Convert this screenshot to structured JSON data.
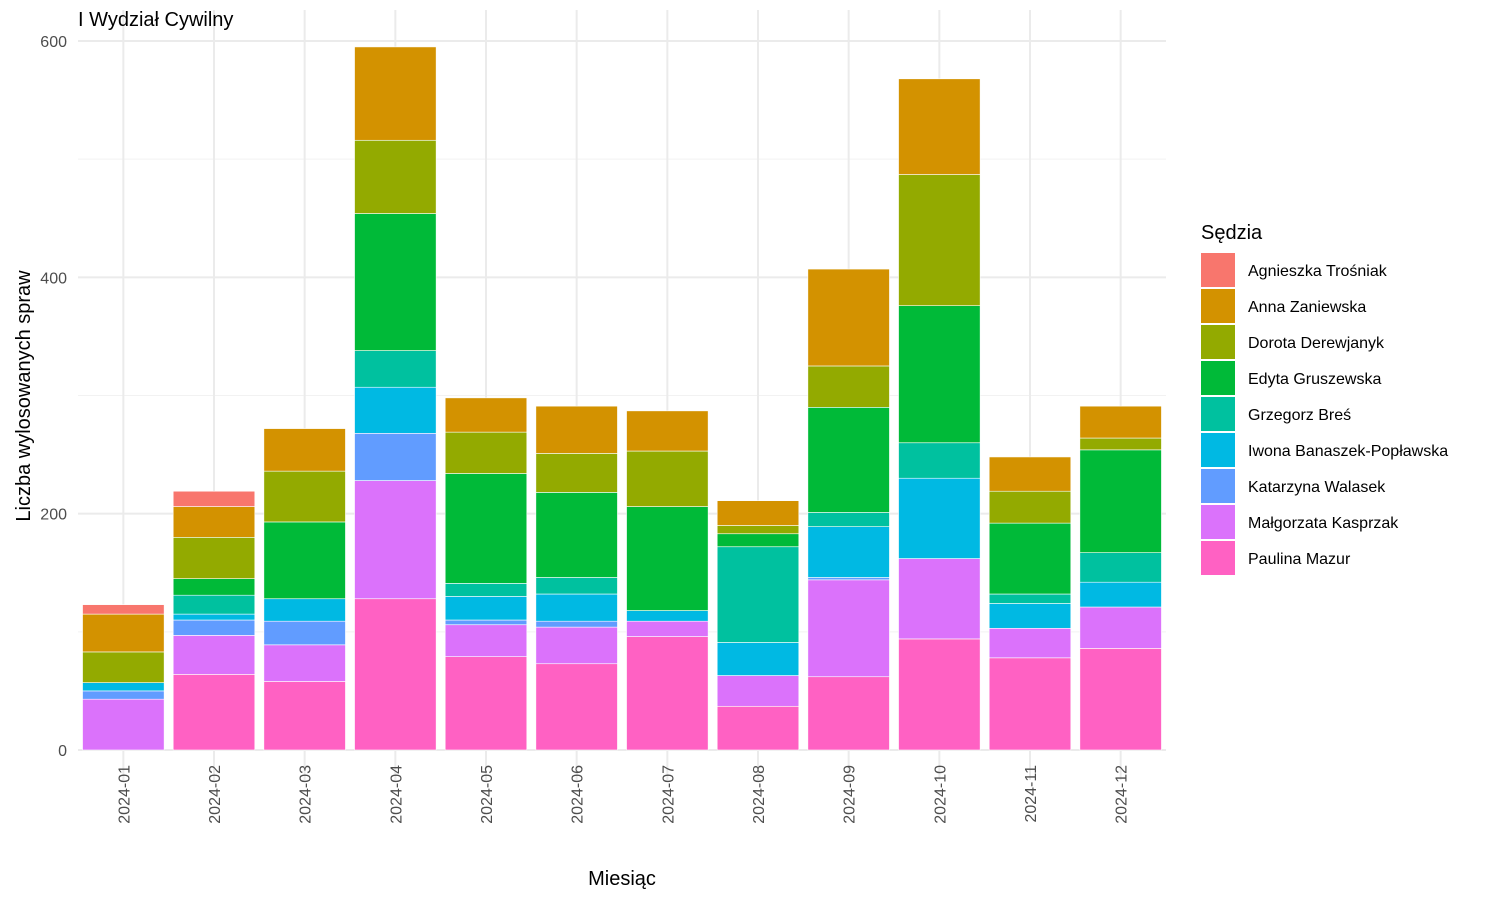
{
  "chart_data": {
    "type": "bar",
    "stacked": true,
    "title": "I Wydział Cywilny",
    "xlabel": "Miesiąc",
    "ylabel": "Liczba wylosowanych spraw",
    "ylim": [
      0,
      600
    ],
    "yticks": [
      0,
      200,
      400,
      600
    ],
    "grid": true,
    "legend_title": "Sędzia",
    "legend_position": "right",
    "categories": [
      "2024-01",
      "2024-02",
      "2024-03",
      "2024-04",
      "2024-05",
      "2024-06",
      "2024-07",
      "2024-08",
      "2024-09",
      "2024-10",
      "2024-11",
      "2024-12"
    ],
    "series": [
      {
        "name": "Paulina Mazur",
        "color": "#FF61C3",
        "values": [
          0,
          64,
          58,
          128,
          79,
          73,
          96,
          37,
          62,
          94,
          78,
          86
        ]
      },
      {
        "name": "Małgorzata Kasprzak",
        "color": "#DB72FB",
        "values": [
          43,
          33,
          31,
          100,
          27,
          31,
          13,
          26,
          82,
          68,
          25,
          35
        ]
      },
      {
        "name": "Katarzyna Walasek",
        "color": "#619CFF",
        "values": [
          7,
          13,
          20,
          40,
          4,
          5,
          0,
          0,
          2,
          0,
          0,
          0
        ]
      },
      {
        "name": "Iwona Banaszek-Popławska",
        "color": "#00B9E3",
        "values": [
          7,
          5,
          19,
          39,
          20,
          23,
          9,
          28,
          43,
          68,
          21,
          21
        ]
      },
      {
        "name": "Grzegorz Breś",
        "color": "#00C19F",
        "values": [
          0,
          16,
          0,
          31,
          11,
          14,
          0,
          81,
          12,
          30,
          8,
          25
        ]
      },
      {
        "name": "Edyta Gruszewska",
        "color": "#00BA38",
        "values": [
          0,
          14,
          65,
          116,
          93,
          72,
          88,
          11,
          89,
          116,
          60,
          87
        ]
      },
      {
        "name": "Dorota Derewjanyk",
        "color": "#93AA00",
        "values": [
          26,
          35,
          43,
          62,
          35,
          33,
          47,
          7,
          35,
          111,
          27,
          10
        ]
      },
      {
        "name": "Anna Zaniewska",
        "color": "#D39200",
        "values": [
          32,
          26,
          36,
          79,
          29,
          40,
          34,
          21,
          82,
          81,
          29,
          27
        ]
      },
      {
        "name": "Agnieszka Trośniak",
        "color": "#F8766D",
        "values": [
          8,
          13,
          0,
          0,
          0,
          0,
          0,
          0,
          0,
          0,
          0,
          0
        ]
      }
    ],
    "legend_order": [
      "Agnieszka Trośniak",
      "Anna Zaniewska",
      "Dorota Derewjanyk",
      "Edyta Gruszewska",
      "Grzegorz Breś",
      "Iwona Banaszek-Popławska",
      "Katarzyna Walasek",
      "Małgorzata Kasprzak",
      "Paulina Mazur"
    ]
  }
}
